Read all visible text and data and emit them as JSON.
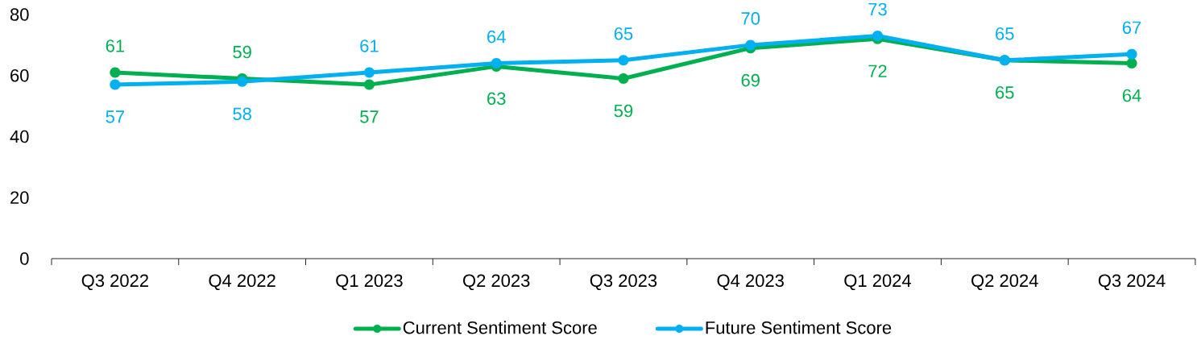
{
  "chart_data": {
    "type": "line",
    "categories": [
      "Q3 2022",
      "Q4 2022",
      "Q1 2023",
      "Q2 2023",
      "Q3 2023",
      "Q4 2023",
      "Q1 2024",
      "Q2 2024",
      "Q3 2024"
    ],
    "ylim": [
      0,
      80
    ],
    "yticks": [
      0,
      20,
      40,
      60,
      80
    ],
    "series": [
      {
        "name": "Current Sentiment Score",
        "color": "#00b050",
        "values": [
          61,
          59,
          57,
          63,
          59,
          69,
          72,
          65,
          64
        ]
      },
      {
        "name": "Future Sentiment Score",
        "color": "#00b0f0",
        "values": [
          57,
          58,
          61,
          64,
          65,
          70,
          73,
          65,
          67
        ]
      }
    ],
    "data_labels": true,
    "legend": "bottom",
    "marker": "circle",
    "line_style": "solid"
  }
}
